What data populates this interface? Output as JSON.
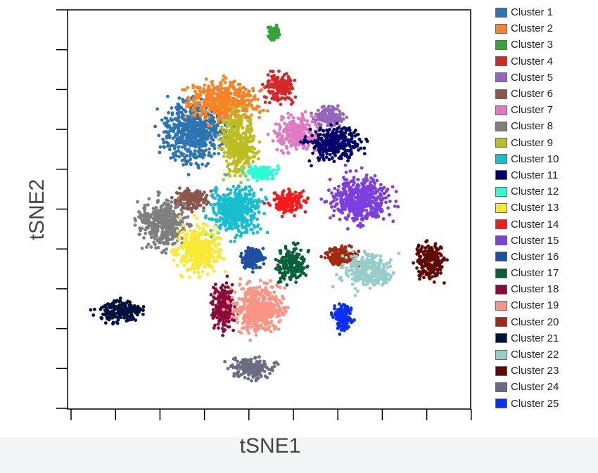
{
  "chart_data": {
    "type": "scatter",
    "xlabel": "tSNE1",
    "ylabel": "tSNE2",
    "x_ticks_labeled": false,
    "y_ticks_labeled": false,
    "grid": false,
    "legend_position": "right, outside plot",
    "series": [
      {
        "name": "Cluster 1",
        "color": "#2c74b3",
        "center": [
          -30,
          9
        ],
        "spread": [
          10,
          9
        ]
      },
      {
        "name": "Cluster 2",
        "color": "#fb8224",
        "center": [
          -18,
          19
        ],
        "spread": [
          12,
          6
        ]
      },
      {
        "name": "Cluster 3",
        "color": "#34a537",
        "center": [
          2,
          42
        ],
        "spread": [
          2,
          2
        ]
      },
      {
        "name": "Cluster 4",
        "color": "#d62729",
        "center": [
          4,
          24
        ],
        "spread": [
          5,
          4
        ]
      },
      {
        "name": "Cluster 5",
        "color": "#9467bd",
        "center": [
          24,
          14
        ],
        "spread": [
          5,
          3
        ]
      },
      {
        "name": "Cluster 6",
        "color": "#8c564b",
        "center": [
          -31,
          -14
        ],
        "spread": [
          6,
          3
        ]
      },
      {
        "name": "Cluster 7",
        "color": "#e278c2",
        "center": [
          11,
          8
        ],
        "spread": [
          7,
          5
        ]
      },
      {
        "name": "Cluster 8",
        "color": "#7f7f7f",
        "center": [
          -42,
          -22
        ],
        "spread": [
          8,
          7
        ]
      },
      {
        "name": "Cluster 9",
        "color": "#bcbd22",
        "center": [
          -12,
          5
        ],
        "spread": [
          6,
          9
        ]
      },
      {
        "name": "Cluster 10",
        "color": "#17becf",
        "center": [
          -13,
          -18
        ],
        "spread": [
          9,
          7
        ]
      },
      {
        "name": "Cluster 11",
        "color": "#02006b",
        "center": [
          26,
          5
        ],
        "spread": [
          9,
          5
        ]
      },
      {
        "name": "Cluster 12",
        "color": "#2cfcd3",
        "center": [
          -3,
          -5
        ],
        "spread": [
          5,
          2
        ]
      },
      {
        "name": "Cluster 13",
        "color": "#f9e932",
        "center": [
          -28,
          -31
        ],
        "spread": [
          7,
          7
        ]
      },
      {
        "name": "Cluster 14",
        "color": "#f8191b",
        "center": [
          8,
          -15
        ],
        "spread": [
          6,
          3
        ]
      },
      {
        "name": "Cluster 15",
        "color": "#7c3fe0",
        "center": [
          36,
          -14
        ],
        "spread": [
          10,
          7
        ]
      },
      {
        "name": "Cluster 16",
        "color": "#1f4fa3",
        "center": [
          -7,
          -34
        ],
        "spread": [
          4,
          3
        ]
      },
      {
        "name": "Cluster 17",
        "color": "#08603c",
        "center": [
          9,
          -36
        ],
        "spread": [
          5,
          5
        ]
      },
      {
        "name": "Cluster 18",
        "color": "#8c0a3a",
        "center": [
          -18,
          -50
        ],
        "spread": [
          4,
          7
        ]
      },
      {
        "name": "Cluster 19",
        "color": "#f99485",
        "center": [
          -4,
          -51
        ],
        "spread": [
          9,
          7
        ]
      },
      {
        "name": "Cluster 20",
        "color": "#a02a11",
        "center": [
          28,
          -33
        ],
        "spread": [
          5,
          3
        ]
      },
      {
        "name": "Cluster 21",
        "color": "#00113f",
        "center": [
          -59,
          -52
        ],
        "spread": [
          8,
          3
        ]
      },
      {
        "name": "Cluster 22",
        "color": "#96cdc9",
        "center": [
          39,
          -38
        ],
        "spread": [
          8,
          5
        ]
      },
      {
        "name": "Cluster 23",
        "color": "#610903",
        "center": [
          64,
          -35
        ],
        "spread": [
          5,
          5
        ]
      },
      {
        "name": "Cluster 24",
        "color": "#6b6c82",
        "center": [
          -7,
          -71
        ],
        "spread": [
          7,
          3
        ]
      },
      {
        "name": "Cluster 25",
        "color": "#0a2ff7",
        "center": [
          29,
          -54
        ],
        "spread": [
          3,
          4
        ]
      }
    ]
  }
}
